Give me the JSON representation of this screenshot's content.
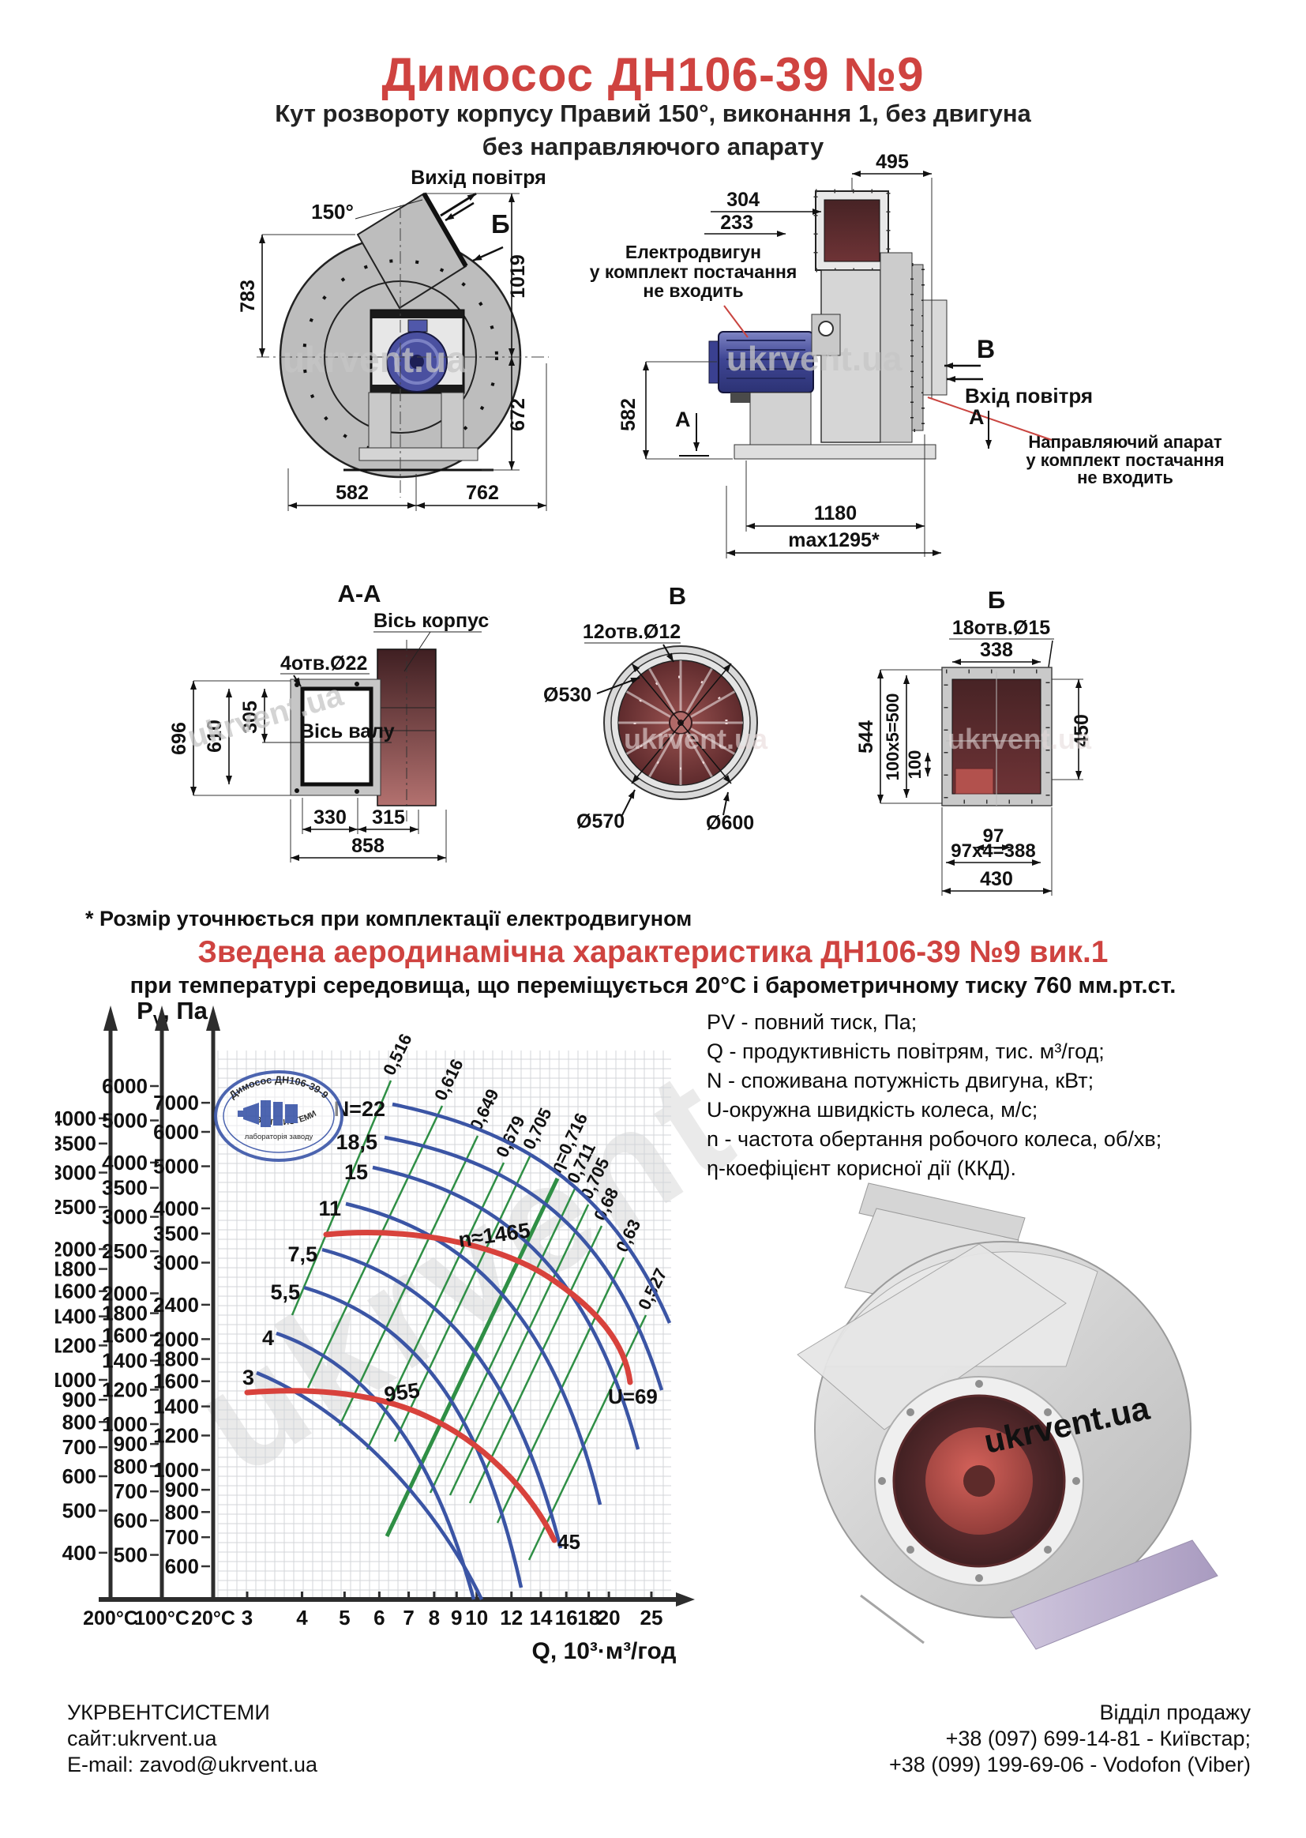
{
  "header": {
    "title": "Димосос  ДН106-39 №9",
    "subtitle1": "Кут розвороту корпусу Правий 150°, виконання 1, без двигуна",
    "subtitle2": "без направляючого апарату"
  },
  "watermark": "ukrvent.ua",
  "left_view": {
    "air_out": "Вихід повітря",
    "angle": "150°",
    "view": "Б",
    "dim_783": "783",
    "dim_1019": "1019",
    "dim_672": "672",
    "dim_582": "582",
    "dim_762": "762"
  },
  "right_view": {
    "dim_495": "495",
    "dim_304": "304",
    "dim_233": "233",
    "dim_582": "582",
    "dim_1180": "1180",
    "dim_max": "max1295*",
    "view_v": "В",
    "air_in": "Вхід повітря",
    "section_a": "А",
    "motor_note": [
      "Електродвигун",
      "у комплект постачання",
      "не входить"
    ],
    "guide_note": [
      "Направляючий апарат",
      "у комплект постачання",
      "не входить"
    ]
  },
  "section_aa": {
    "title": "А-А",
    "axis_body": "Вісь корпусу",
    "holes": "4отв.Ø22",
    "axis_shaft": "Вісь валу",
    "dim_696": "696",
    "dim_610": "610",
    "dim_305": "305",
    "dim_330": "330",
    "dim_315": "315",
    "dim_858": "858"
  },
  "section_v": {
    "title": "В",
    "holes": "12отв.Ø12",
    "d530": "Ø530",
    "d570": "Ø570",
    "d600": "Ø600"
  },
  "section_b": {
    "title": "Б",
    "holes": "18отв.Ø15",
    "dim_338": "338",
    "dim_544": "544",
    "dim_500": "100x5=500",
    "dim_100": "100",
    "dim_450": "450",
    "dim_97": "97",
    "dim_388": "97x4=388",
    "dim_430": "430"
  },
  "footnote": "* Розмір уточнюється при комплектації електродвигуном",
  "chart": {
    "title": "Зведена аеродинамічна характеристика ДН106-39 №9 вик.1",
    "subtitle": "при температурі середовища, що переміщується 20°С і барометричному тиску 760 мм.рт.ст.",
    "y_label_p": "P",
    "y_label_sub": "v",
    "y_label_unit": ", Па",
    "stamp_line1": "Димосос ДН106-39-9",
    "stamp_line2": "лабораторія заводу",
    "stamp_line3": "УКРВЕНТСИСТЕМИ",
    "legend": [
      "PV - повний тиск, Па;",
      "Q - продуктивність повітрям, тис. м³/год;",
      "N - споживана потужність двигуна, кВт;",
      "U-окружна швидкість колеса, м/с;",
      "n - частота обертання робочого колеса, об/хв;",
      "η-коефіцієнт корисної дії (ККД)."
    ]
  },
  "chart_data": {
    "type": "line",
    "x_axis": {
      "label": "Q, 10³·м³/год",
      "scale": "log",
      "ticks": [
        3,
        4,
        5,
        6,
        7,
        8,
        9,
        10,
        12,
        14,
        16,
        18,
        20,
        25
      ]
    },
    "pressure_axes": [
      {
        "temp": "200°C",
        "ticks": [
          4000,
          3500,
          3000,
          2500,
          2000,
          1800,
          1600,
          1400,
          1200,
          1000,
          900,
          800,
          700,
          600,
          500,
          400
        ]
      },
      {
        "temp": "100°C",
        "ticks": [
          6000,
          5000,
          4000,
          3500,
          3000,
          2500,
          2000,
          1800,
          1600,
          1400,
          1200,
          1000,
          900,
          800,
          700,
          600,
          500
        ]
      },
      {
        "temp": "20°C",
        "ticks": [
          7000,
          6000,
          5000,
          4000,
          3500,
          3000,
          2400,
          2000,
          1800,
          1600,
          1400,
          1200,
          1000,
          900,
          800,
          700,
          600
        ]
      }
    ],
    "power_curves_kW": [
      "N=22",
      "18,5",
      "15",
      "11",
      "7,5",
      "5,5",
      "4",
      "3"
    ],
    "efficiency_lines": [
      "0,516",
      "0,616",
      "0,649",
      "0,679",
      "0,705",
      "η=0,716",
      "0,711",
      "0,705",
      "0,68",
      "0,63",
      "0,527"
    ],
    "speed_curves": [
      {
        "label": "n≈1465",
        "end_label": "U=69"
      },
      {
        "label": "955",
        "end_label": "45"
      }
    ]
  },
  "footer": {
    "left": [
      "УКРВЕНТСИСТЕМИ",
      "сайт:ukrvent.ua",
      "E-mail: zavod@ukrvent.ua"
    ],
    "right": [
      "Відділ продажу",
      "+38 (097) 699-14-81 - Київстар;",
      "+38 (099) 199-69-06 - Vodofon (Viber)"
    ]
  }
}
